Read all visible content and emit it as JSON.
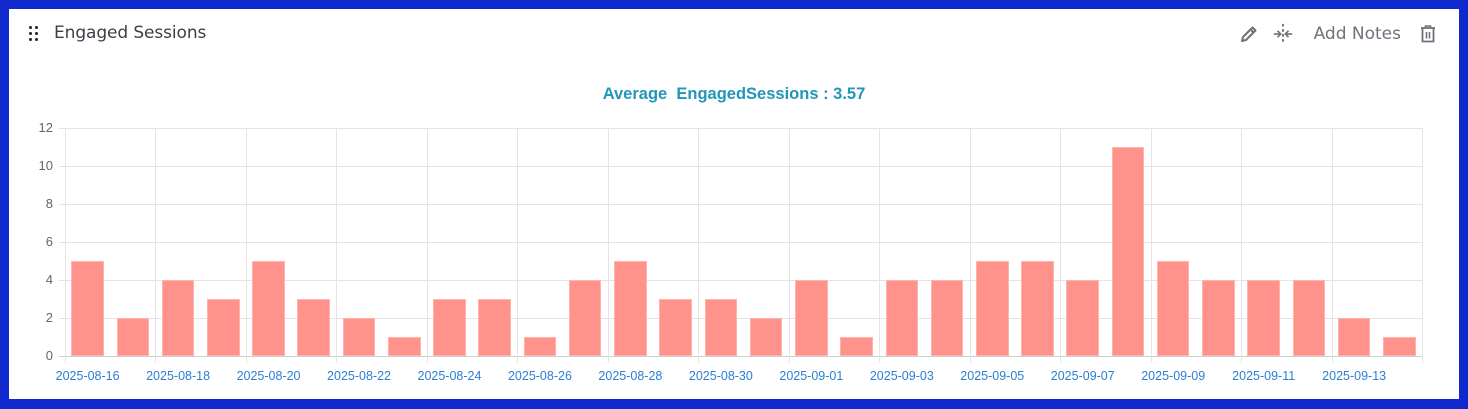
{
  "widget": {
    "title": "Engaged Sessions",
    "toolbar": {
      "edit_icon": "pencil-icon",
      "collapse_icon": "collapse-horizontal-icon",
      "add_notes_label": "Add Notes",
      "delete_icon": "trash-icon"
    }
  },
  "chart_title": "Average  EngagedSessions : 3.57",
  "colors": {
    "bar_fill": "#ff938b",
    "title": "#2196b8",
    "x_tick": "#2a7fd4",
    "frame": "#1029cc"
  },
  "chart_data": {
    "type": "bar",
    "title": "Average  EngagedSessions : 3.57",
    "xlabel": "",
    "ylabel": "",
    "ylim": [
      0,
      12
    ],
    "yticks": [
      0,
      2,
      4,
      6,
      8,
      10,
      12
    ],
    "grid": true,
    "legend": "none",
    "categories": [
      "2025-08-16",
      "2025-08-17",
      "2025-08-18",
      "2025-08-19",
      "2025-08-20",
      "2025-08-21",
      "2025-08-22",
      "2025-08-23",
      "2025-08-24",
      "2025-08-25",
      "2025-08-26",
      "2025-08-27",
      "2025-08-28",
      "2025-08-29",
      "2025-08-30",
      "2025-08-31",
      "2025-09-01",
      "2025-09-02",
      "2025-09-03",
      "2025-09-04",
      "2025-09-05",
      "2025-09-06",
      "2025-09-07",
      "2025-09-08",
      "2025-09-09",
      "2025-09-10",
      "2025-09-11",
      "2025-09-12",
      "2025-09-13",
      "2025-09-14"
    ],
    "xtick_labels": [
      "2025-08-16",
      "2025-08-18",
      "2025-08-20",
      "2025-08-22",
      "2025-08-24",
      "2025-08-26",
      "2025-08-28",
      "2025-08-30",
      "2025-09-01",
      "2025-09-03",
      "2025-09-05",
      "2025-09-07",
      "2025-09-09",
      "2025-09-11",
      "2025-09-13"
    ],
    "series": [
      {
        "name": "EngagedSessions",
        "values": [
          5,
          2,
          4,
          3,
          5,
          3,
          2,
          1,
          3,
          3,
          1,
          4,
          5,
          3,
          3,
          2,
          4,
          1,
          4,
          4,
          5,
          5,
          4,
          11,
          5,
          4,
          4,
          4,
          2,
          1
        ]
      }
    ],
    "average": 3.57
  }
}
